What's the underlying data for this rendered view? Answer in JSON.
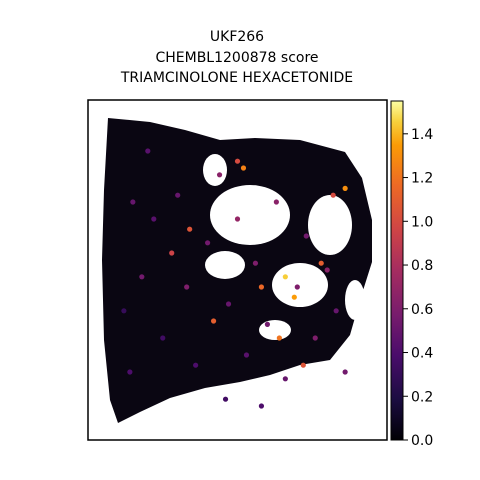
{
  "chart_data": {
    "type": "scatter",
    "title_lines": [
      "UKF266",
      "CHEMBL1200878 score",
      "TRIAMCINOLONE HEXACETONIDE"
    ],
    "xlabel": "",
    "ylabel": "",
    "colormap": "inferno",
    "colorbar": {
      "range": [
        0.0,
        1.55
      ],
      "ticks": [
        0.0,
        0.2,
        0.4,
        0.6,
        0.8,
        1.0,
        1.2,
        1.4
      ],
      "tick_labels": [
        "0.0",
        "0.2",
        "0.4",
        "0.6",
        "0.8",
        "1.0",
        "1.2",
        "1.4"
      ]
    },
    "grid": false,
    "legend": "none",
    "points": [
      {
        "x": 0.12,
        "y": 0.62,
        "v": 0.3
      },
      {
        "x": 0.18,
        "y": 0.52,
        "v": 0.55
      },
      {
        "x": 0.22,
        "y": 0.35,
        "v": 0.45
      },
      {
        "x": 0.25,
        "y": 0.7,
        "v": 0.35
      },
      {
        "x": 0.3,
        "y": 0.28,
        "v": 0.5
      },
      {
        "x": 0.33,
        "y": 0.55,
        "v": 0.6
      },
      {
        "x": 0.36,
        "y": 0.78,
        "v": 0.4
      },
      {
        "x": 0.4,
        "y": 0.42,
        "v": 0.55
      },
      {
        "x": 0.44,
        "y": 0.22,
        "v": 0.65
      },
      {
        "x": 0.47,
        "y": 0.6,
        "v": 0.5
      },
      {
        "x": 0.5,
        "y": 0.35,
        "v": 0.7
      },
      {
        "x": 0.53,
        "y": 0.75,
        "v": 0.45
      },
      {
        "x": 0.56,
        "y": 0.48,
        "v": 0.6
      },
      {
        "x": 0.6,
        "y": 0.66,
        "v": 0.55
      },
      {
        "x": 0.63,
        "y": 0.3,
        "v": 0.65
      },
      {
        "x": 0.66,
        "y": 0.82,
        "v": 0.5
      },
      {
        "x": 0.7,
        "y": 0.55,
        "v": 0.6
      },
      {
        "x": 0.73,
        "y": 0.4,
        "v": 0.55
      },
      {
        "x": 0.76,
        "y": 0.7,
        "v": 0.6
      },
      {
        "x": 0.8,
        "y": 0.5,
        "v": 0.65
      },
      {
        "x": 0.83,
        "y": 0.62,
        "v": 0.5
      },
      {
        "x": 0.86,
        "y": 0.8,
        "v": 0.55
      },
      {
        "x": 0.28,
        "y": 0.45,
        "v": 0.95
      },
      {
        "x": 0.34,
        "y": 0.38,
        "v": 1.05
      },
      {
        "x": 0.42,
        "y": 0.65,
        "v": 1.1
      },
      {
        "x": 0.5,
        "y": 0.18,
        "v": 1.0
      },
      {
        "x": 0.58,
        "y": 0.55,
        "v": 1.15
      },
      {
        "x": 0.64,
        "y": 0.7,
        "v": 1.2
      },
      {
        "x": 0.72,
        "y": 0.78,
        "v": 1.05
      },
      {
        "x": 0.78,
        "y": 0.48,
        "v": 1.1
      },
      {
        "x": 0.82,
        "y": 0.28,
        "v": 1.0
      },
      {
        "x": 0.66,
        "y": 0.52,
        "v": 1.45
      },
      {
        "x": 0.69,
        "y": 0.58,
        "v": 1.35
      },
      {
        "x": 0.86,
        "y": 0.26,
        "v": 1.3
      },
      {
        "x": 0.52,
        "y": 0.2,
        "v": 1.25
      },
      {
        "x": 0.15,
        "y": 0.3,
        "v": 0.5
      },
      {
        "x": 0.14,
        "y": 0.8,
        "v": 0.4
      },
      {
        "x": 0.2,
        "y": 0.15,
        "v": 0.45
      },
      {
        "x": 0.46,
        "y": 0.88,
        "v": 0.35
      },
      {
        "x": 0.58,
        "y": 0.9,
        "v": 0.4
      }
    ]
  }
}
